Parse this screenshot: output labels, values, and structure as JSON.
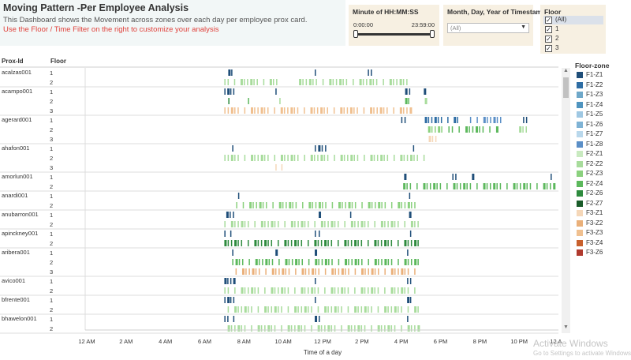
{
  "header": {
    "title": "Moving Pattern -Per Employee Analysis",
    "subtitle": "This Dashboard shows the Movement across zones over each day per employee prox card.",
    "hint": "Use the Floor / Time Filter on the right to customize your analysis"
  },
  "filters": {
    "time": {
      "title": "Minute of HH:MM:SS",
      "low": "0:00:00",
      "high": "23:59:00"
    },
    "date": {
      "title": "Month, Day, Year of Timestamp",
      "value": "(All)"
    },
    "floor": {
      "title": "Floor",
      "options": [
        {
          "label": "(All)",
          "checked": true
        },
        {
          "label": "1",
          "checked": true
        },
        {
          "label": "2",
          "checked": true
        },
        {
          "label": "3",
          "checked": true
        }
      ]
    }
  },
  "icons": {
    "checkbox": "check-icon",
    "dropdown": "chevron-down-icon",
    "scroll_up": "arrow-up-icon",
    "scroll_down": "arrow-down-icon"
  },
  "watermark": {
    "title": "Activate Windows",
    "sub": "Go to Settings to activate Windows."
  },
  "chart_data": {
    "type": "heatmap",
    "row_header_1": "Prox-Id",
    "row_header_2": "Floor",
    "xlabel": "Time of a day",
    "x_units": "hour of day",
    "xlim": [
      0,
      24
    ],
    "x_ticks": [
      {
        "hour": 0,
        "label": "12 AM"
      },
      {
        "hour": 2,
        "label": "2 AM"
      },
      {
        "hour": 4,
        "label": "4 AM"
      },
      {
        "hour": 6,
        "label": "6 AM"
      },
      {
        "hour": 8,
        "label": "8 AM"
      },
      {
        "hour": 10,
        "label": "10 AM"
      },
      {
        "hour": 12,
        "label": "12 PM"
      },
      {
        "hour": 14,
        "label": "2 PM"
      },
      {
        "hour": 16,
        "label": "4 PM"
      },
      {
        "hour": 18,
        "label": "6 PM"
      },
      {
        "hour": 20,
        "label": "8 PM"
      },
      {
        "hour": 22,
        "label": "10 PM"
      },
      {
        "hour": 24,
        "label": "12 AM"
      }
    ],
    "legend_title": "Floor-zone",
    "legend_position": "right",
    "zones": [
      {
        "name": "F1-Z1",
        "color": "#1f4e79"
      },
      {
        "name": "F1-Z2",
        "color": "#2e6da4"
      },
      {
        "name": "F1-Z3",
        "color": "#6fa8c9"
      },
      {
        "name": "F1-Z4",
        "color": "#4f94bf"
      },
      {
        "name": "F1-Z5",
        "color": "#9fc8e3"
      },
      {
        "name": "F1-Z6",
        "color": "#7fb3d5"
      },
      {
        "name": "F1-Z7",
        "color": "#b9d8ec"
      },
      {
        "name": "F1-Z8",
        "color": "#5b8fc7"
      },
      {
        "name": "F2-Z1",
        "color": "#c9eac0"
      },
      {
        "name": "F2-Z2",
        "color": "#a8dc9c"
      },
      {
        "name": "F2-Z3",
        "color": "#8bd17e"
      },
      {
        "name": "F2-Z4",
        "color": "#5cb85c"
      },
      {
        "name": "F2-Z6",
        "color": "#2e8b3e"
      },
      {
        "name": "F2-Z7",
        "color": "#1a5c2a"
      },
      {
        "name": "F3-Z1",
        "color": "#f5d7b8"
      },
      {
        "name": "F3-Z2",
        "color": "#eab07a"
      },
      {
        "name": "F3-Z3",
        "color": "#f0c090"
      },
      {
        "name": "F3-Z4",
        "color": "#c8602d"
      },
      {
        "name": "F3-Z6",
        "color": "#b03a2e"
      }
    ],
    "employees": [
      {
        "id": "acalzas001",
        "floors": [
          "1",
          "2"
        ],
        "activity": [
          [
            [
              7.2,
              7.5,
              "F1-Z1"
            ],
            [
              11.6,
              12.0,
              "F1-Z1"
            ],
            [
              14.3,
              14.6,
              "F1-Z1"
            ],
            [
              16.4,
              16.6,
              "F1-Z1"
            ]
          ],
          [
            [
              7.0,
              9.8,
              "F2-Z2"
            ],
            [
              10.8,
              16.6,
              "F2-Z2"
            ]
          ]
        ]
      },
      {
        "id": "acampo001",
        "floors": [
          "1",
          "2",
          "3"
        ],
        "activity": [
          [
            [
              7.0,
              7.6,
              "F1-Z1"
            ],
            [
              9.6,
              9.7,
              "F1-Z1"
            ],
            [
              16.2,
              16.6,
              "F1-Z1"
            ],
            [
              17.0,
              17.3,
              "F1-Z1"
            ]
          ],
          [
            [
              7.0,
              7.4,
              "F2-Z6"
            ],
            [
              8.2,
              8.4,
              "F2-Z4"
            ],
            [
              9.8,
              9.9,
              "F2-Z2"
            ],
            [
              16.2,
              16.5,
              "F2-Z4"
            ],
            [
              17.0,
              17.4,
              "F2-Z2"
            ]
          ],
          [
            [
              7.0,
              16.6,
              "F3-Z3"
            ]
          ]
        ]
      },
      {
        "id": "agerard001",
        "floors": [
          "1",
          "2",
          "3"
        ],
        "activity": [
          [
            [
              16.0,
              16.5,
              "F1-Z1"
            ],
            [
              17.2,
              19.0,
              "F1-Z2"
            ],
            [
              19.5,
              21.2,
              "F1-Z8"
            ],
            [
              22.2,
              22.5,
              "F1-Z1"
            ]
          ],
          [
            [
              17.2,
              18.2,
              "F2-Z3"
            ],
            [
              18.4,
              21.0,
              "F2-Z4"
            ],
            [
              22.0,
              22.5,
              "F2-Z2"
            ]
          ],
          [
            [
              17.4,
              17.9,
              "F3-Z1"
            ]
          ]
        ]
      },
      {
        "id": "ahafon001",
        "floors": [
          "1",
          "2",
          "3"
        ],
        "activity": [
          [
            [
              7.2,
              7.6,
              "F1-Z1"
            ],
            [
              11.6,
              12.3,
              "F1-Z1"
            ],
            [
              16.6,
              16.9,
              "F1-Z1"
            ]
          ],
          [
            [
              7.0,
              17.3,
              "F2-Z2"
            ]
          ],
          [
            [
              9.6,
              10.2,
              "F3-Z1"
            ]
          ]
        ]
      },
      {
        "id": "amorlun001",
        "floors": [
          "1",
          "2"
        ],
        "activity": [
          [
            [
              16.0,
              16.3,
              "F1-Z1"
            ],
            [
              18.6,
              18.9,
              "F1-Z1"
            ],
            [
              19.6,
              19.8,
              "F1-Z1"
            ],
            [
              23.6,
              23.9,
              "F1-Z1"
            ]
          ],
          [
            [
              16.1,
              23.9,
              "F2-Z4"
            ]
          ]
        ]
      },
      {
        "id": "anardi001",
        "floors": [
          "1",
          "2"
        ],
        "activity": [
          [
            [
              7.7,
              7.9,
              "F1-Z1"
            ],
            [
              13.1,
              13.3,
              "F1-Z1"
            ],
            [
              16.4,
              16.6,
              "F1-Z1"
            ]
          ],
          [
            [
              7.6,
              17.0,
              "F2-Z3"
            ]
          ]
        ]
      },
      {
        "id": "anubarron001",
        "floors": [
          "1",
          "2"
        ],
        "activity": [
          [
            [
              7.1,
              7.6,
              "F1-Z1"
            ],
            [
              11.6,
              12.0,
              "F1-Z1"
            ],
            [
              13.4,
              13.6,
              "F1-Z1"
            ],
            [
              16.4,
              16.6,
              "F1-Z1"
            ]
          ],
          [
            [
              7.0,
              17.0,
              "F2-Z2"
            ]
          ]
        ]
      },
      {
        "id": "apinckney001",
        "floors": [
          "1",
          "2"
        ],
        "activity": [
          [
            [
              7.0,
              7.6,
              "F1-Z1"
            ],
            [
              11.6,
              12.0,
              "F1-Z1"
            ],
            [
              16.3,
              16.6,
              "F1-Z1"
            ]
          ],
          [
            [
              7.0,
              17.0,
              "F2-Z6"
            ]
          ]
        ]
      },
      {
        "id": "aribera001",
        "floors": [
          "1",
          "2",
          "3"
        ],
        "activity": [
          [
            [
              7.4,
              7.8,
              "F1-Z1"
            ],
            [
              9.6,
              9.8,
              "F1-Z1"
            ],
            [
              11.4,
              11.8,
              "F1-Z1"
            ],
            [
              16.3,
              16.5,
              "F1-Z1"
            ]
          ],
          [
            [
              7.4,
              17.0,
              "F2-Z4"
            ]
          ],
          [
            [
              7.4,
              17.0,
              "F3-Z2"
            ]
          ]
        ]
      },
      {
        "id": "avico001",
        "floors": [
          "1",
          "2"
        ],
        "activity": [
          [
            [
              7.0,
              7.6,
              "F1-Z1"
            ],
            [
              11.6,
              12.0,
              "F1-Z1"
            ],
            [
              16.3,
              16.6,
              "F1-Z1"
            ]
          ],
          [
            [
              7.0,
              17.0,
              "F2-Z2"
            ]
          ]
        ]
      },
      {
        "id": "bfrente001",
        "floors": [
          "1",
          "2"
        ],
        "activity": [
          [
            [
              7.0,
              7.6,
              "F1-Z1"
            ],
            [
              11.6,
              12.0,
              "F1-Z1"
            ],
            [
              16.3,
              16.6,
              "F1-Z1"
            ]
          ],
          [
            [
              7.0,
              17.0,
              "F2-Z2"
            ]
          ]
        ]
      },
      {
        "id": "bhawelon001",
        "floors": [
          "1",
          "2"
        ],
        "activity": [
          [
            [
              7.0,
              7.6,
              "F1-Z1"
            ],
            [
              11.6,
              12.0,
              "F1-Z1"
            ],
            [
              16.3,
              16.6,
              "F1-Z1"
            ]
          ],
          [
            [
              7.0,
              17.0,
              "F2-Z2"
            ]
          ]
        ]
      }
    ]
  }
}
